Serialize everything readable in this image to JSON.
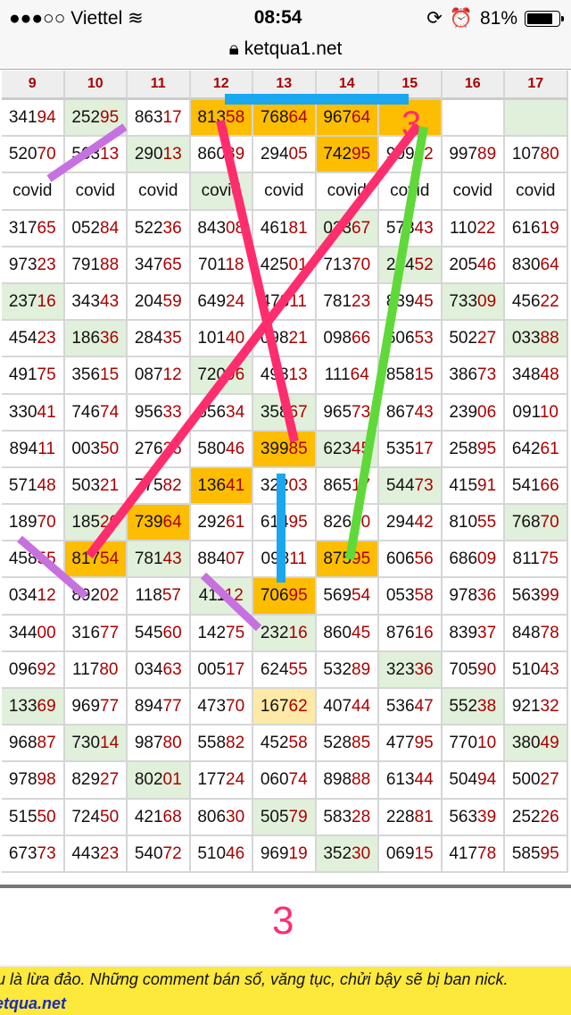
{
  "status_bar": {
    "carrier": "●●●○○ Viettel",
    "time": "08:54",
    "battery": "81%",
    "battery_level": 0.81
  },
  "browser": {
    "url": "ketqua1.net"
  },
  "table": {
    "headers": [
      "9",
      "10",
      "11",
      "12",
      "13",
      "14",
      "15",
      "16",
      "17"
    ],
    "rows": [
      [
        "34194",
        "25295",
        "86317",
        "81358",
        "76864",
        "96764",
        "",
        "",
        ""
      ],
      [
        "52070",
        "56313",
        "29013",
        "86039",
        "29405",
        "74295",
        "90912",
        "99789",
        "10780"
      ],
      [
        "covid",
        "covid",
        "covid",
        "covid",
        "covid",
        "covid",
        "covid",
        "covid",
        "covid"
      ],
      [
        "31765",
        "05284",
        "52236",
        "84308",
        "46181",
        "02367",
        "57843",
        "11022",
        "61619"
      ],
      [
        "97323",
        "79188",
        "34765",
        "70118",
        "42501",
        "71370",
        "24452",
        "20546",
        "83064"
      ],
      [
        "23716",
        "34343",
        "20459",
        "64924",
        "47811",
        "78123",
        "83945",
        "73309",
        "45622"
      ],
      [
        "45423",
        "18636",
        "28435",
        "10140",
        "09821",
        "09866",
        "60653",
        "50227",
        "03388"
      ],
      [
        "49175",
        "35615",
        "08712",
        "72096",
        "49313",
        "11164",
        "85815",
        "38673",
        "34848"
      ],
      [
        "33041",
        "74674",
        "95633",
        "55634",
        "35867",
        "96573",
        "86743",
        "23906",
        "09110"
      ],
      [
        "89411",
        "00350",
        "27626",
        "58046",
        "39985",
        "62345",
        "53517",
        "25895",
        "64261"
      ],
      [
        "57148",
        "50321",
        "77582",
        "13641",
        "32203",
        "86517",
        "54473",
        "41591",
        "54166"
      ],
      [
        "18970",
        "18520",
        "73964",
        "29261",
        "61495",
        "82650",
        "29442",
        "81055",
        "76870"
      ],
      [
        "45855",
        "81754",
        "78143",
        "88407",
        "09811",
        "87595",
        "60656",
        "68609",
        "81175"
      ],
      [
        "03412",
        "89202",
        "11857",
        "41112",
        "70695",
        "56954",
        "05358",
        "97836",
        "56399"
      ],
      [
        "34400",
        "31677",
        "54560",
        "14275",
        "23216",
        "86045",
        "87616",
        "83937",
        "84878"
      ],
      [
        "09692",
        "11780",
        "03463",
        "00517",
        "62455",
        "53289",
        "32336",
        "70590",
        "51043"
      ],
      [
        "13369",
        "96977",
        "89477",
        "47370",
        "16762",
        "40744",
        "53647",
        "55238",
        "92132"
      ],
      [
        "96887",
        "73014",
        "98780",
        "55882",
        "45258",
        "52885",
        "47795",
        "77010",
        "38049"
      ],
      [
        "97898",
        "82927",
        "80201",
        "17724",
        "06074",
        "89888",
        "61344",
        "50494",
        "50027"
      ],
      [
        "51550",
        "72450",
        "42168",
        "80630",
        "50579",
        "58328",
        "22881",
        "56339",
        "25226"
      ],
      [
        "67373",
        "44323",
        "54072",
        "51046",
        "96919",
        "35230",
        "06915",
        "41778",
        "58595"
      ]
    ],
    "highlight": [
      [
        "",
        "g",
        "",
        "o",
        "o",
        "o",
        "o",
        "",
        "g"
      ],
      [
        "",
        "",
        "g",
        "",
        "",
        "o",
        "",
        "",
        ""
      ],
      [
        "",
        "",
        "",
        "g",
        "",
        "",
        "",
        "",
        ""
      ],
      [
        "",
        "",
        "",
        "",
        "",
        "g",
        "",
        "",
        ""
      ],
      [
        "",
        "",
        "",
        "",
        "",
        "",
        "g",
        "",
        ""
      ],
      [
        "g",
        "",
        "",
        "",
        "",
        "",
        "",
        "g",
        ""
      ],
      [
        "",
        "g",
        "",
        "",
        "",
        "",
        "",
        "",
        "g"
      ],
      [
        "",
        "",
        "",
        "g",
        "",
        "",
        "",
        "",
        ""
      ],
      [
        "",
        "",
        "",
        "",
        "g",
        "",
        "",
        "",
        ""
      ],
      [
        "",
        "",
        "",
        "",
        "o",
        "g",
        "",
        "",
        ""
      ],
      [
        "",
        "",
        "",
        "o",
        "",
        "",
        "g",
        "",
        ""
      ],
      [
        "",
        "g",
        "o",
        "",
        "",
        "",
        "",
        "",
        "g"
      ],
      [
        "",
        "o",
        "g",
        "",
        "",
        "o",
        "",
        "",
        ""
      ],
      [
        "",
        "",
        "",
        "g",
        "o",
        "",
        "",
        "",
        ""
      ],
      [
        "",
        "",
        "",
        "",
        "g",
        "",
        "",
        "",
        ""
      ],
      [
        "",
        "",
        "",
        "",
        "",
        "",
        "g",
        "",
        ""
      ],
      [
        "g",
        "",
        "",
        "",
        "y",
        "",
        "",
        "g",
        ""
      ],
      [
        "",
        "g",
        "",
        "",
        "",
        "",
        "",
        "",
        "g"
      ],
      [
        "",
        "",
        "g",
        "",
        "",
        "",
        "",
        "",
        ""
      ],
      [
        "",
        "",
        "",
        "",
        "g",
        "",
        "",
        "",
        ""
      ],
      [
        "",
        "",
        "",
        "",
        "",
        "g",
        "",
        "",
        ""
      ]
    ]
  },
  "annotations": {
    "label_top": "3",
    "label_mid": "3",
    "colors": {
      "pink": "#ff2d6e",
      "blue": "#1aa7f0",
      "green": "#5fd93a",
      "purple": "#c771e0"
    }
  },
  "footer": {
    "notice": "u là lừa đảo. Những comment bán số, văng tục, chửi bậy sẽ bị ban nick.",
    "site": "etqua.net"
  },
  "colors": {
    "highlight_orange": "#fdbd00",
    "highlight_green": "#e1f0db",
    "highlight_yellow": "#ffe9a6",
    "digit_red": "#aa0000"
  }
}
